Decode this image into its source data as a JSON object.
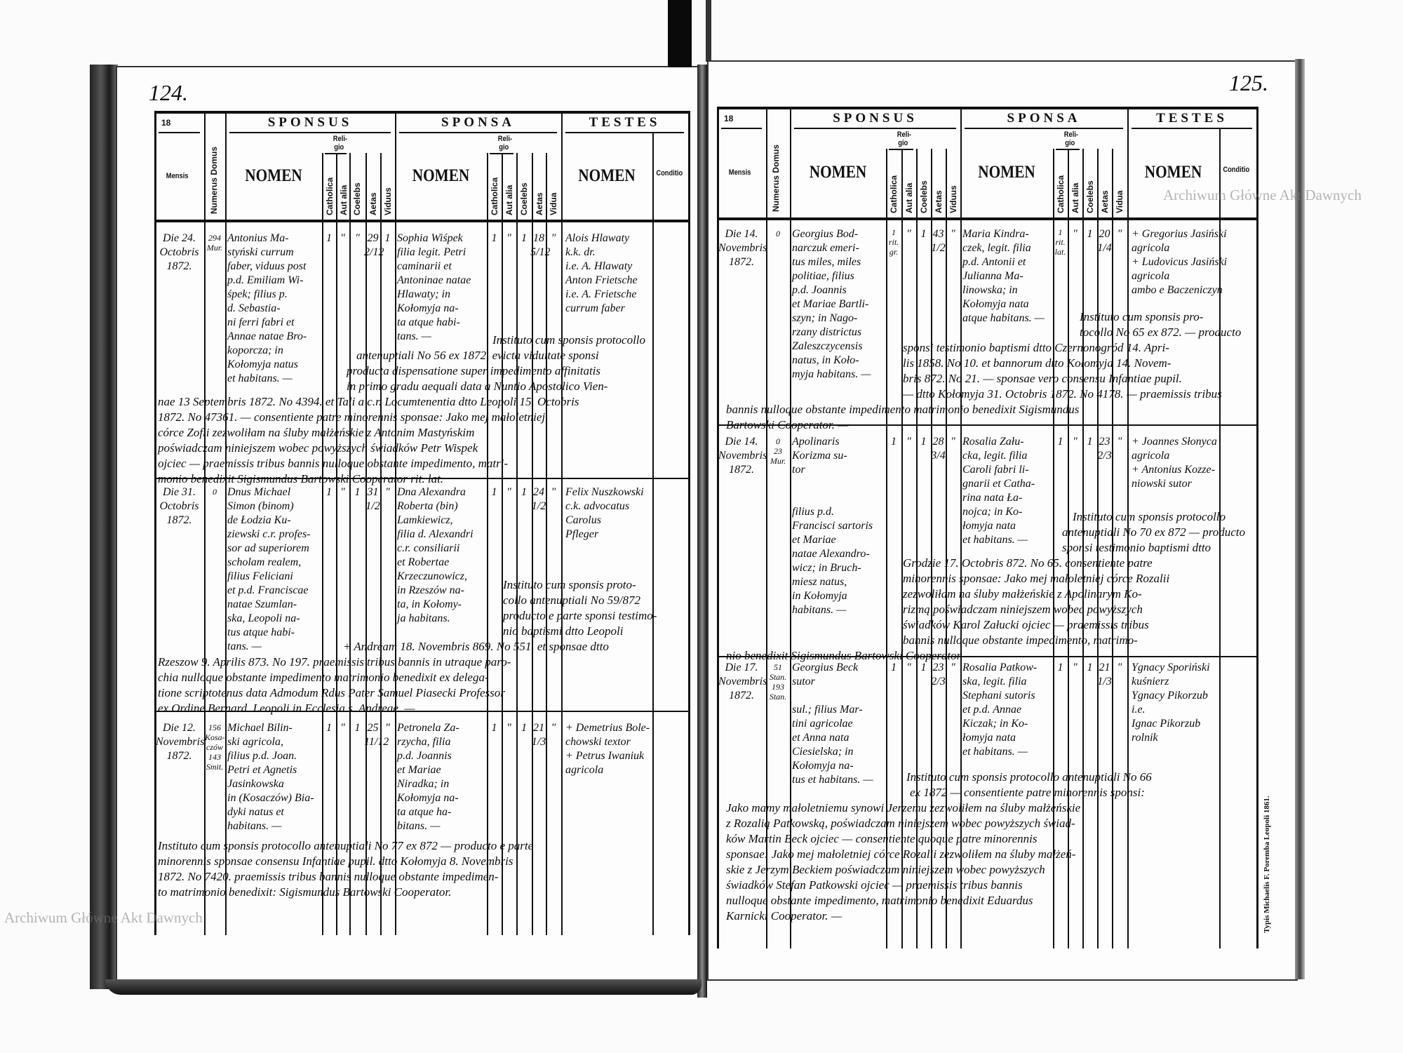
{
  "header": {
    "year_prefix": "18",
    "sponsus": "SPONSUS",
    "sponsa": "SPONSA",
    "testes": "TESTES",
    "mensis": "Mensis",
    "numerus_domus": "Numerus Domus",
    "nomen": "NOMEN",
    "religio": [
      "Reli-",
      "gio"
    ],
    "catholica": "Catholica",
    "aut_alia": "Aut alia",
    "coelebs": "Coelebs",
    "aetas": "Aetas",
    "viduus": "Viduus",
    "vidua": "Vidua",
    "conditio": "Conditio"
  },
  "watermark": "Archiwum Główne Akt Dawnych",
  "printer_note": "Typis Michaelis F. Poremba Leopoli 1861.",
  "colors": {
    "ink": "#111111",
    "paper": "#fdfdfd",
    "watermark": "#787878"
  },
  "pages": [
    {
      "page_number": "124.",
      "entries": [
        {
          "date": [
            "Die 24.",
            "Octobris",
            "1872."
          ],
          "domus": [
            "294",
            "Mur."
          ],
          "sponsus": {
            "name": [
              "Antonius Ma-",
              "styński currum",
              "faber, viduus post",
              "p.d. Emiliam Wi-",
              "śpek; filius p.",
              "d. Sebastia-",
              "ni ferri fabri et",
              "Annae natae Bro-",
              "koporcza; in",
              "Kołomyja natus",
              "et habitans. —"
            ],
            "catholica": [
              "1"
            ],
            "aut_alia": [
              "\""
            ],
            "coelebs": [
              "\""
            ],
            "aetas": [
              "29",
              "2/12"
            ],
            "viduus": [
              "1"
            ]
          },
          "sponsa": {
            "name": [
              "Sophia Wiśpek",
              "filia legit. Petri",
              "caminarii et",
              "Antoninae natae",
              "Hlawaty; in",
              "Kołomyja na-",
              "ta atque habi-",
              "tans. —"
            ],
            "catholica": [
              "1"
            ],
            "aut_alia": [
              "\""
            ],
            "coelebs": [
              "1"
            ],
            "aetas": [
              "18",
              "5/12"
            ],
            "vidua": [
              "\""
            ]
          },
          "testes": [
            "Alois Hlawaty",
            "k.k. dr.",
            "i.e. A. Hlawaty",
            "Anton Frietsche",
            "i.e. A. Frietsche",
            "currum faber"
          ],
          "notes": [
            "Instituto cum sponsis protocollo",
            "antenuptiali No 56 ex 1872, evicta viduitate sponsi",
            "producta dispensatione super impedimento affinitatis",
            "in primo gradu aequali data a Nuntio Apostolico Vien-",
            "nae 13 Septembris 1872. No 4394. et Tali a c.r. Locumtenentia dtto Leopoli 15. Octobris",
            "1872. No 47361. — consentiente patre minorennis sponsae: Jako mej małoletniej",
            "córce Zofii zezwoliłam na śluby małżeńskie z Antonim Mastyńskim",
            "poświadczam niniejszem wobec powyższych świadków Petr Wispek",
            "ojciec — praemissis tribus bannis nulloque obstante impedimento, matri-",
            "monio benedixit Sigismundus Bartowski Cooperator rit. lat."
          ]
        },
        {
          "date": [
            "Die 31.",
            "Octobris",
            "1872."
          ],
          "domus": [
            "0"
          ],
          "sponsus": {
            "name": [
              "Dnus Michael",
              "Simon (binom)",
              "de Łodzia Ku-",
              "ziewski c.r. profes-",
              "sor ad superiorem",
              "scholam realem,",
              "filius Feliciani",
              "et p.d. Franciscae",
              "natae Szumlan-",
              "ska, Leopoli na-",
              "tus atque habi-",
              "tans. —"
            ],
            "catholica": [
              "1"
            ],
            "aut_alia": [
              "\""
            ],
            "coelebs": [
              "1"
            ],
            "aetas": [
              "31",
              "1/2"
            ],
            "viduus": [
              "\""
            ]
          },
          "sponsa": {
            "name": [
              "Dna Alexandra",
              "Roberta (bin)",
              "Lamkiewicz,",
              "filia d. Alexandri",
              "c.r. consiliarii",
              "et Robertae",
              "Krzeczunowicz,",
              "in Rzeszów na-",
              "ta, in Kołomy-",
              "ja habitans."
            ],
            "catholica": [
              "1"
            ],
            "aut_alia": [
              "\""
            ],
            "coelebs": [
              "1"
            ],
            "aetas": [
              "24",
              "1/2"
            ],
            "vidua": [
              "\""
            ]
          },
          "testes": [
            "Felix Nuszkowski",
            "c.k. advocatus",
            "Carolus",
            "Pfleger"
          ],
          "notes": [
            "Instituto cum sponsis proto-",
            "collo antenuptiali No 59/872",
            "producto e parte sponsi testimo-",
            "nio baptismi dtto Leopoli",
            "+ Andream 18. Novembris 869. No 551. et sponsae dtto",
            "Rzeszow 9. Aprilis 873. No 197. praemissis tribus bannis in utraque paro-",
            "chia nulloque obstante impedimento matrimonio benedixit ex delega-",
            "tione scriptotenus data Admodum Rdus Pater Samuel Piasecki Professor",
            "ex Ordine Bernard. Leopoli in Ecclesia s. Andreae. —"
          ]
        },
        {
          "date": [
            "Die 12.",
            "Novembris",
            "1872."
          ],
          "domus": [
            "156",
            "Kosa-",
            "czów",
            "143",
            "Smit."
          ],
          "sponsus": {
            "name": [
              "Michael Bilin-",
              "ski agricola,",
              "filius p.d. Joan.",
              "Petri et Agnetis",
              "Jasinkowska",
              "in (Kosaczów) Bia-",
              "dyki natus et",
              "habitans. —"
            ],
            "catholica": [
              "1"
            ],
            "aut_alia": [
              "\""
            ],
            "coelebs": [
              "1"
            ],
            "aetas": [
              "25",
              "11/12"
            ],
            "viduus": [
              "\""
            ]
          },
          "sponsa": {
            "name": [
              "Petronela Za-",
              "rzycha, filia",
              "p.d. Joannis",
              "et Mariae",
              "Niradka; in",
              "Kołomyja na-",
              "ta atque ha-",
              "bitans. —"
            ],
            "catholica": [
              "1"
            ],
            "aut_alia": [
              "\""
            ],
            "coelebs": [
              "1"
            ],
            "aetas": [
              "21",
              "1/3"
            ],
            "vidua": [
              "\""
            ]
          },
          "testes": [
            "+ Demetrius Bole-",
            "chowski textor",
            "+ Petrus Iwaniuk",
            "agricola"
          ],
          "notes": [
            "Instituto cum sponsis protocollo antenuptiali No 77 ex 872 — producto e parte",
            "minorennis sponsae consensu Infantiae pupil. dtto Kołomyja 8. Novembris",
            "1872. No 7420. praemissis tribus bannis nulloque obstante impedimen-",
            "to matrimonio benedixit: Sigismundus Bartowski Cooperator."
          ]
        }
      ]
    },
    {
      "page_number": "125.",
      "entries": [
        {
          "date": [
            "Die 14.",
            "Novembris",
            "1872."
          ],
          "domus": [
            "0"
          ],
          "sponsus": {
            "name": [
              "Georgius Bod-",
              "narczuk emeri-",
              "tus miles, miles",
              "politiae, filius",
              "p.d. Joannis",
              "et Mariae Bartli-",
              "szyn; in Nago-",
              "rzany districtus",
              "Zaleszczycensis",
              "natus, in Koło-",
              "myja habitans. —"
            ],
            "catholica": [
              "1",
              "rit.",
              "gr."
            ],
            "aut_alia": [
              "\""
            ],
            "coelebs": [
              "1"
            ],
            "aetas": [
              "43",
              "1/2"
            ],
            "viduus": [
              "\""
            ]
          },
          "sponsa": {
            "name": [
              "Maria Kindra-",
              "czek, legit. filia",
              "p.d. Antonii et",
              "Julianna Ma-",
              "linowska; in",
              "Kołomyja nata",
              "atque habitans. —"
            ],
            "catholica": [
              "1",
              "rit.",
              "lat."
            ],
            "aut_alia": [
              "\""
            ],
            "coelebs": [
              "1"
            ],
            "aetas": [
              "20",
              "1/4"
            ],
            "vidua": [
              "\""
            ]
          },
          "testes": [
            "+ Gregorius Jasiński",
            "agricola",
            "+ Ludovicus Jasiński",
            "agricola",
            "ambo e Baczeniczyn"
          ],
          "notes": [
            "Instituto cum sponsis pro-",
            "tocollo No 65 ex 872. — producto",
            "sponsi testimonio baptismi dtto Czernonogród 14. Apri-",
            "lis 1858. No 10. et bannorum dtto Kołomyja 14. Novem-",
            "bris 872. No 21. — sponsae vero consensu Infantiae pupil.",
            "— dtto Kołomyja 31. Octobris 1872. No 4178. — praemissis tribus",
            "bannis nulloque obstante impedimento matrimonio benedixit Sigismundus",
            "Bartowski Cooperator. —"
          ]
        },
        {
          "date": [
            "Die 14.",
            "Novembris",
            "1872."
          ],
          "domus": [
            "0",
            "23",
            "Mur."
          ],
          "sponsus": {
            "name": [
              "Apolinaris",
              "Korizma su-",
              "tor",
              "",
              "",
              "filius p.d.",
              "Francisci sartoris",
              "et Mariae",
              "natae Alexandro-",
              "wicz; in Bruch-",
              "miesz natus,",
              "in Kołomyja",
              "habitans. —"
            ],
            "catholica": [
              "1"
            ],
            "aut_alia": [
              "\""
            ],
            "coelebs": [
              "1"
            ],
            "aetas": [
              "28",
              "3/4"
            ],
            "viduus": [
              "\""
            ]
          },
          "sponsa": {
            "name": [
              "Rosalia Zału-",
              "cka, legit. filia",
              "Caroli fabri li-",
              "gnarii et Catha-",
              "rina nata Ła-",
              "nojca; in Ko-",
              "łomyja nata",
              "et habitans. —"
            ],
            "catholica": [
              "1"
            ],
            "aut_alia": [
              "\""
            ],
            "coelebs": [
              "1"
            ],
            "aetas": [
              "23",
              "2/3"
            ],
            "vidua": [
              "\""
            ]
          },
          "testes": [
            "+ Joannes Słonyca",
            "agricola",
            "+ Antonius Kozze-",
            "niowski sutor"
          ],
          "notes": [
            "Instituto cum sponsis protocollo",
            "antenuptiali No 70 ex 872 — producto",
            "sponsi testimonio baptismi dtto",
            "Grodzie 17. Octobris 872. No 65. consentiente patre",
            "minorennis sponsae: Jako mej małoletniej córce Rozalii",
            "zezwoliłam na śluby małżeńskie z Apolinarym Ko-",
            "rizmą poświadczam niniejszem wobec powyższych",
            "świadków Karol Załucki ojciec — praemissis tribus",
            "bannis nulloque obstante impedimento, matrimo-",
            "nio benedixit Sigismundus Bartowski Cooperator. —"
          ]
        },
        {
          "date": [
            "Die 17.",
            "Novembris",
            "1872."
          ],
          "domus": [
            "51",
            "Stan.",
            "193",
            "Stan."
          ],
          "sponsus": {
            "name": [
              "Georgius Beck",
              "sutor",
              "",
              "sul.; filius Mar-",
              "tini agricolae",
              "et Anna nata",
              "Ciesielska; in",
              "Kołomyja na-",
              "tus et habitans. —"
            ],
            "catholica": [
              "1"
            ],
            "aut_alia": [
              "\""
            ],
            "coelebs": [
              "1"
            ],
            "aetas": [
              "23",
              "2/3"
            ],
            "viduus": [
              "\""
            ]
          },
          "sponsa": {
            "name": [
              "Rosalia Patkow-",
              "ska, legit. filia",
              "Stephani sutoris",
              "et p.d. Annae",
              "Kiczak; in Ko-",
              "łomyja nata",
              "et habitans. —"
            ],
            "catholica": [
              "1"
            ],
            "aut_alia": [
              "\""
            ],
            "coelebs": [
              "1"
            ],
            "aetas": [
              "21",
              "1/3"
            ],
            "vidua": [
              "\""
            ]
          },
          "testes": [
            "Ygnacy Sporiński",
            "kuśnierz",
            "Ygnacy Pikorzub",
            "i.e.",
            "Ignac Pikorzub",
            "rolnik"
          ],
          "notes": [
            "Instituto cum sponsis protocollo antenuptiali No 66",
            "ex 1872 — consentiente patre minorennis sponsi:",
            "Jako mamy małoletniemu synowi Jerzemu zezwoliłem na śluby małżeńskie",
            "z Rozalią Patkowską, poświadczam niniejszem wobec powyższych świad-",
            "ków Martin Beck ojciec — consentiente quoque patre minorennis",
            "sponsae: Jako mej małoletniej córce Rozalii zezwoliłem na śluby małżeń-",
            "skie z Jerzym Beckiem poświadczam niniejszem wobec powyższych",
            "świadków Stefan Patkowski ojciec — praemissis tribus bannis",
            "nulloque obstante impedimento, matrimonio benedixit Eduardus",
            "Karnicki Cooperator. —"
          ]
        }
      ]
    }
  ]
}
